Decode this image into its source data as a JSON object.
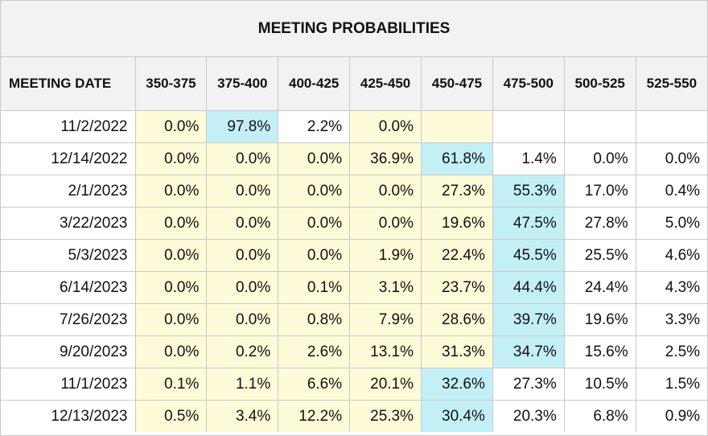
{
  "title": "MEETING PROBABILITIES",
  "columns": [
    "MEETING DATE",
    "350-375",
    "375-400",
    "400-425",
    "425-450",
    "450-475",
    "475-500",
    "500-525",
    "525-550"
  ],
  "colors": {
    "yellow": "#fdfbd8",
    "blue": "#c3f0f7",
    "header": "#f2f2f2",
    "border": "#c9c9c9"
  },
  "rows": [
    {
      "date": "11/2/2022",
      "values": [
        "0.0%",
        "97.8%",
        "2.2%",
        "0.0%",
        "",
        "",
        "",
        ""
      ],
      "highlight": [
        1,
        2,
        0,
        1,
        1,
        0,
        0,
        0
      ]
    },
    {
      "date": "12/14/2022",
      "values": [
        "0.0%",
        "0.0%",
        "0.0%",
        "36.9%",
        "61.8%",
        "1.4%",
        "0.0%",
        "0.0%"
      ],
      "highlight": [
        1,
        1,
        1,
        1,
        2,
        0,
        0,
        0
      ]
    },
    {
      "date": "2/1/2023",
      "values": [
        "0.0%",
        "0.0%",
        "0.0%",
        "0.0%",
        "27.3%",
        "55.3%",
        "17.0%",
        "0.4%"
      ],
      "highlight": [
        1,
        1,
        1,
        1,
        1,
        2,
        0,
        0
      ]
    },
    {
      "date": "3/22/2023",
      "values": [
        "0.0%",
        "0.0%",
        "0.0%",
        "0.0%",
        "19.6%",
        "47.5%",
        "27.8%",
        "5.0%"
      ],
      "highlight": [
        1,
        1,
        1,
        1,
        1,
        2,
        0,
        0
      ]
    },
    {
      "date": "5/3/2023",
      "values": [
        "0.0%",
        "0.0%",
        "0.0%",
        "1.9%",
        "22.4%",
        "45.5%",
        "25.5%",
        "4.6%"
      ],
      "highlight": [
        1,
        1,
        1,
        1,
        1,
        2,
        0,
        0
      ]
    },
    {
      "date": "6/14/2023",
      "values": [
        "0.0%",
        "0.0%",
        "0.1%",
        "3.1%",
        "23.7%",
        "44.4%",
        "24.4%",
        "4.3%"
      ],
      "highlight": [
        1,
        1,
        1,
        1,
        1,
        2,
        0,
        0
      ]
    },
    {
      "date": "7/26/2023",
      "values": [
        "0.0%",
        "0.0%",
        "0.8%",
        "7.9%",
        "28.6%",
        "39.7%",
        "19.6%",
        "3.3%"
      ],
      "highlight": [
        1,
        1,
        1,
        1,
        1,
        2,
        0,
        0
      ]
    },
    {
      "date": "9/20/2023",
      "values": [
        "0.0%",
        "0.2%",
        "2.6%",
        "13.1%",
        "31.3%",
        "34.7%",
        "15.6%",
        "2.5%"
      ],
      "highlight": [
        1,
        1,
        1,
        1,
        1,
        2,
        0,
        0
      ]
    },
    {
      "date": "11/1/2023",
      "values": [
        "0.1%",
        "1.1%",
        "6.6%",
        "20.1%",
        "32.6%",
        "27.3%",
        "10.5%",
        "1.5%"
      ],
      "highlight": [
        1,
        1,
        1,
        1,
        2,
        0,
        0,
        0
      ]
    },
    {
      "date": "12/13/2023",
      "values": [
        "0.5%",
        "3.4%",
        "12.2%",
        "25.3%",
        "30.4%",
        "20.3%",
        "6.8%",
        "0.9%"
      ],
      "highlight": [
        1,
        1,
        1,
        1,
        2,
        0,
        0,
        0
      ]
    }
  ]
}
